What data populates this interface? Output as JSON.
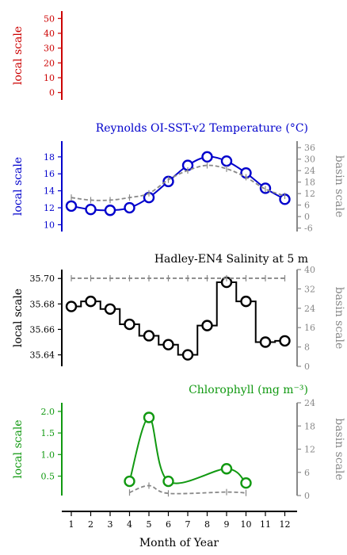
{
  "colors": {
    "red": "#cc0000",
    "blue": "#0000cc",
    "black": "#000000",
    "green": "#119911",
    "gray": "#888888"
  },
  "chart_data": [
    {
      "type": "line",
      "title": "",
      "ylabel": "local scale",
      "ylim": [
        -5,
        55
      ],
      "yticks": [
        0,
        10,
        20,
        30,
        40,
        50
      ],
      "axis_color": "red",
      "series": []
    },
    {
      "type": "line",
      "title": "Reynolds OI-SST-v2 Temperature (°C)",
      "ylabel": "local scale",
      "ylabel_right": "basin scale",
      "ylim": [
        9.2,
        19.2
      ],
      "yticks": [
        10,
        12,
        14,
        16,
        18
      ],
      "ylim_right": [
        -7.8,
        36.5
      ],
      "yticks_right": [
        -6,
        0,
        6,
        12,
        18,
        24,
        30,
        36
      ],
      "axis_color": "blue",
      "series": [
        {
          "role": "local",
          "color": "blue",
          "x": [
            1,
            2,
            3,
            4,
            5,
            6,
            7,
            8,
            9,
            10,
            11,
            12
          ],
          "y": [
            12.2,
            11.8,
            11.7,
            12.0,
            13.2,
            15.1,
            17.0,
            18.0,
            17.5,
            16.1,
            14.3,
            13.0
          ]
        },
        {
          "role": "basin",
          "color": "gray",
          "style": "dashed",
          "x": [
            1,
            2,
            3,
            4,
            5,
            6,
            7,
            8,
            9,
            10,
            11,
            12
          ],
          "y": [
            13.2,
            12.9,
            12.9,
            13.2,
            13.7,
            15.3,
            16.4,
            17.0,
            16.6,
            15.6,
            14.2,
            13.4
          ]
        }
      ]
    },
    {
      "type": "line",
      "title": "Hadley-EN4 Salinity at 5 m",
      "ylabel": "local scale",
      "ylabel_right": "basin scale",
      "ylim": [
        35.631,
        35.707
      ],
      "yticks": [
        35.64,
        35.66,
        35.68,
        35.7
      ],
      "yticks_right": [
        0,
        8,
        16,
        24,
        32,
        40
      ],
      "ylim_right": [
        0,
        40
      ],
      "tick_decimals": 2,
      "axis_color": "black",
      "series": [
        {
          "role": "local",
          "color": "black",
          "step": true,
          "x": [
            1,
            2,
            3,
            4,
            5,
            6,
            7,
            8,
            9,
            10,
            11,
            12
          ],
          "y": [
            35.678,
            35.682,
            35.676,
            35.664,
            35.655,
            35.648,
            35.64,
            35.663,
            35.697,
            35.682,
            35.65,
            35.651
          ]
        },
        {
          "role": "basin",
          "color": "gray",
          "style": "dashed",
          "x": [
            1,
            2,
            3,
            4,
            5,
            6,
            7,
            8,
            9,
            10,
            11,
            12
          ],
          "y": [
            35.7002,
            35.7002,
            35.7002,
            35.7002,
            35.7002,
            35.7002,
            35.7002,
            35.7002,
            35.7002,
            35.7002,
            35.7002,
            35.7002
          ]
        }
      ]
    },
    {
      "type": "line",
      "title": "Chlorophyll (mg m⁻³)",
      "ylabel": "local scale",
      "ylabel_right": "basin scale",
      "ylim": [
        0.05,
        2.2
      ],
      "yticks": [
        0.5,
        1.0,
        1.5,
        2.0
      ],
      "tick_decimals": 1,
      "ylim_right": [
        0,
        24
      ],
      "yticks_right": [
        0,
        6,
        12,
        18,
        24
      ],
      "axis_color": "green",
      "xlabel": "Month of Year",
      "xticks": [
        1,
        2,
        3,
        4,
        5,
        6,
        7,
        8,
        9,
        10,
        11,
        12
      ],
      "series": [
        {
          "role": "local",
          "color": "green",
          "x": [
            4,
            5,
            6,
            9,
            10
          ],
          "y": [
            0.38,
            1.86,
            0.38,
            0.67,
            0.34
          ]
        },
        {
          "role": "basin",
          "color": "gray",
          "style": "dashed",
          "x": [
            4,
            5,
            6,
            9,
            10
          ],
          "y": [
            0.12,
            0.28,
            0.1,
            0.13,
            0.11
          ]
        }
      ]
    }
  ]
}
